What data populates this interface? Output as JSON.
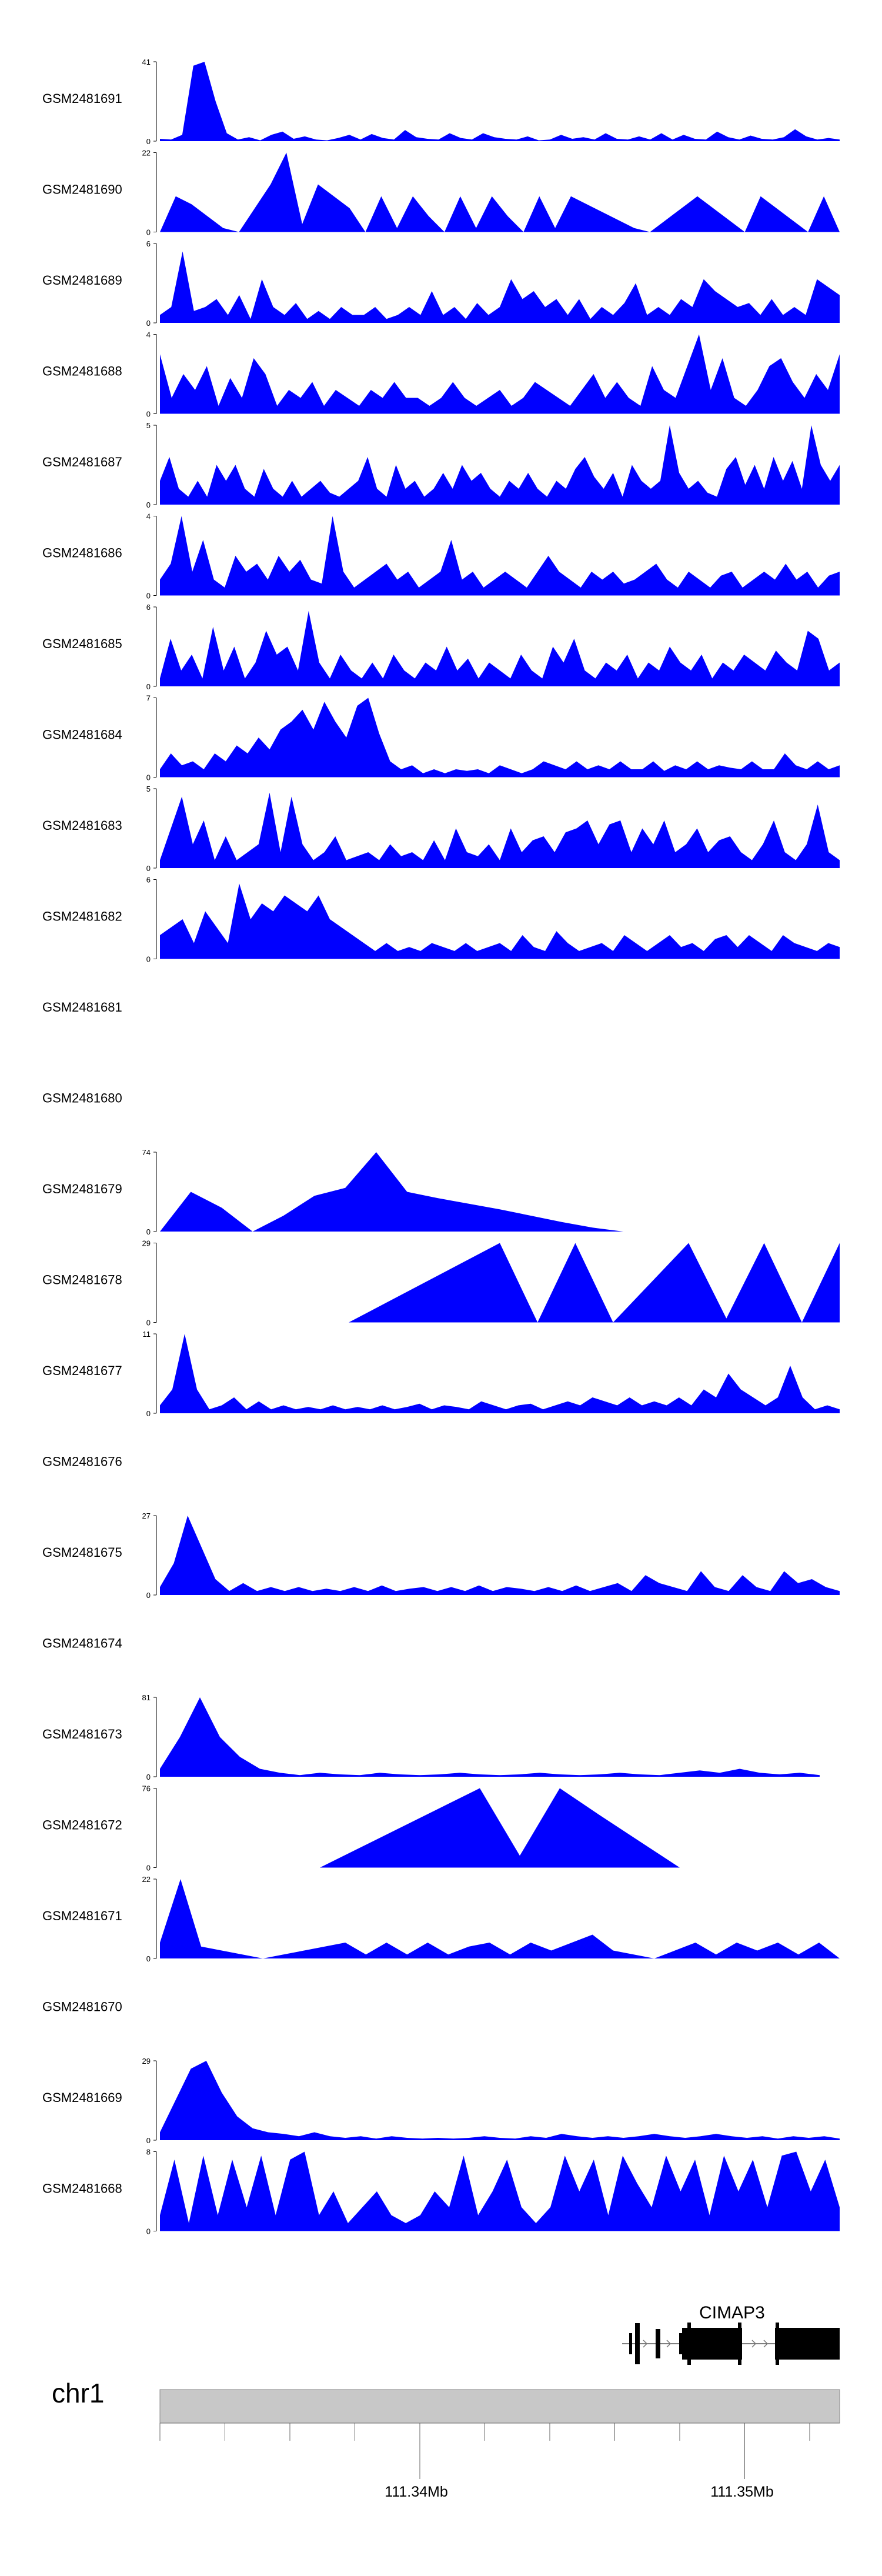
{
  "colors": {
    "signal": "#0000ff",
    "axis": "#000000",
    "ideogram": "#c8c8c8",
    "gene": "#000000"
  },
  "chart_data": {
    "type": "area",
    "x_axis": {
      "ticks": [
        "111.34Mb",
        "111.35Mb"
      ],
      "grid": false
    },
    "chromosome": "chr1",
    "gene": {
      "label": "CIMAP3"
    },
    "tracks": [
      {
        "name": "GSM2481691",
        "ymax": 41,
        "y0": 0,
        "profile": [
          0.03,
          0.02,
          0.08,
          0.95,
          1.0,
          0.5,
          0.1,
          0.02,
          0.05,
          0.01,
          0.08,
          0.12,
          0.03,
          0.06,
          0.02,
          0.01,
          0.04,
          0.08,
          0.02,
          0.09,
          0.04,
          0.02,
          0.14,
          0.05,
          0.03,
          0.02,
          0.1,
          0.04,
          0.02,
          0.1,
          0.05,
          0.03,
          0.02,
          0.06,
          0.01,
          0.02,
          0.08,
          0.03,
          0.05,
          0.02,
          0.1,
          0.03,
          0.02,
          0.06,
          0.02,
          0.1,
          0.02,
          0.08,
          0.03,
          0.02,
          0.12,
          0.05,
          0.02,
          0.07,
          0.03,
          0.02,
          0.05,
          0.15,
          0.06,
          0.02,
          0.04,
          0.02
        ]
      },
      {
        "name": "GSM2481690",
        "ymax": 22,
        "y0": 0,
        "profile": [
          0,
          0.45,
          0.35,
          0.2,
          0.05,
          0.0,
          0.3,
          0.6,
          1.0,
          0.1,
          0.6,
          0.45,
          0.3,
          0.0,
          0.45,
          0.05,
          0.45,
          0.2,
          0.0,
          0.45,
          0.05,
          0.45,
          0.2,
          0.0,
          0.45,
          0.05,
          0.45,
          0.35,
          0.25,
          0.15,
          0.05,
          0.0,
          0.15,
          0.3,
          0.45,
          0.3,
          0.15,
          0.0,
          0.45,
          0.3,
          0.15,
          0.0,
          0.45,
          0.0
        ]
      },
      {
        "name": "GSM2481689",
        "ymax": 6,
        "y0": 0,
        "profile": [
          0.1,
          0.2,
          0.9,
          0.15,
          0.2,
          0.3,
          0.1,
          0.35,
          0.05,
          0.55,
          0.2,
          0.1,
          0.25,
          0.05,
          0.15,
          0.05,
          0.2,
          0.1,
          0.1,
          0.2,
          0.05,
          0.1,
          0.2,
          0.1,
          0.4,
          0.1,
          0.2,
          0.05,
          0.25,
          0.1,
          0.2,
          0.55,
          0.3,
          0.4,
          0.2,
          0.3,
          0.1,
          0.3,
          0.05,
          0.2,
          0.1,
          0.25,
          0.5,
          0.1,
          0.2,
          0.1,
          0.3,
          0.2,
          0.55,
          0.4,
          0.3,
          0.2,
          0.25,
          0.1,
          0.3,
          0.1,
          0.2,
          0.1,
          0.55,
          0.45,
          0.35
        ]
      },
      {
        "name": "GSM2481688",
        "ymax": 4,
        "y0": 0,
        "profile": [
          0.75,
          0.2,
          0.5,
          0.3,
          0.6,
          0.1,
          0.45,
          0.2,
          0.7,
          0.5,
          0.1,
          0.3,
          0.2,
          0.4,
          0.1,
          0.3,
          0.2,
          0.1,
          0.3,
          0.2,
          0.4,
          0.2,
          0.2,
          0.1,
          0.2,
          0.4,
          0.2,
          0.1,
          0.2,
          0.3,
          0.1,
          0.2,
          0.4,
          0.3,
          0.2,
          0.1,
          0.3,
          0.5,
          0.2,
          0.4,
          0.2,
          0.1,
          0.6,
          0.3,
          0.2,
          0.6,
          1.0,
          0.3,
          0.7,
          0.2,
          0.1,
          0.3,
          0.6,
          0.7,
          0.4,
          0.2,
          0.5,
          0.3,
          0.75
        ]
      },
      {
        "name": "GSM2481687",
        "ymax": 5,
        "y0": 0,
        "profile": [
          0.3,
          0.6,
          0.2,
          0.1,
          0.3,
          0.1,
          0.5,
          0.3,
          0.5,
          0.2,
          0.1,
          0.45,
          0.2,
          0.1,
          0.3,
          0.1,
          0.2,
          0.3,
          0.15,
          0.1,
          0.2,
          0.3,
          0.6,
          0.2,
          0.1,
          0.5,
          0.2,
          0.3,
          0.1,
          0.2,
          0.4,
          0.2,
          0.5,
          0.3,
          0.4,
          0.2,
          0.1,
          0.3,
          0.2,
          0.4,
          0.2,
          0.1,
          0.3,
          0.2,
          0.45,
          0.6,
          0.35,
          0.2,
          0.4,
          0.1,
          0.5,
          0.3,
          0.2,
          0.3,
          1.0,
          0.4,
          0.2,
          0.3,
          0.15,
          0.1,
          0.45,
          0.6,
          0.25,
          0.5,
          0.2,
          0.6,
          0.3,
          0.55,
          0.2,
          1.0,
          0.5,
          0.3,
          0.5
        ]
      },
      {
        "name": "GSM2481686",
        "ymax": 4,
        "y0": 0,
        "profile": [
          0.2,
          0.4,
          1.0,
          0.3,
          0.7,
          0.2,
          0.1,
          0.5,
          0.3,
          0.4,
          0.2,
          0.5,
          0.3,
          0.45,
          0.2,
          0.15,
          1.0,
          0.3,
          0.1,
          0.2,
          0.3,
          0.4,
          0.2,
          0.3,
          0.1,
          0.2,
          0.3,
          0.7,
          0.2,
          0.3,
          0.1,
          0.2,
          0.3,
          0.2,
          0.1,
          0.3,
          0.5,
          0.3,
          0.2,
          0.1,
          0.3,
          0.2,
          0.3,
          0.15,
          0.2,
          0.3,
          0.4,
          0.2,
          0.1,
          0.3,
          0.2,
          0.1,
          0.25,
          0.3,
          0.1,
          0.2,
          0.3,
          0.2,
          0.4,
          0.2,
          0.3,
          0.1,
          0.25,
          0.3
        ]
      },
      {
        "name": "GSM2481685",
        "ymax": 6,
        "y0": 0,
        "profile": [
          0.1,
          0.6,
          0.2,
          0.4,
          0.1,
          0.75,
          0.2,
          0.5,
          0.1,
          0.3,
          0.7,
          0.4,
          0.5,
          0.2,
          0.95,
          0.3,
          0.1,
          0.4,
          0.2,
          0.1,
          0.3,
          0.1,
          0.4,
          0.2,
          0.1,
          0.3,
          0.2,
          0.5,
          0.2,
          0.35,
          0.1,
          0.3,
          0.2,
          0.1,
          0.4,
          0.2,
          0.1,
          0.5,
          0.3,
          0.6,
          0.2,
          0.1,
          0.3,
          0.2,
          0.4,
          0.1,
          0.3,
          0.2,
          0.5,
          0.3,
          0.2,
          0.4,
          0.1,
          0.3,
          0.2,
          0.4,
          0.3,
          0.2,
          0.45,
          0.3,
          0.2,
          0.7,
          0.6,
          0.2,
          0.3
        ]
      },
      {
        "name": "GSM2481684",
        "ymax": 7,
        "y0": 0,
        "profile": [
          0.1,
          0.3,
          0.15,
          0.2,
          0.1,
          0.3,
          0.2,
          0.4,
          0.3,
          0.5,
          0.35,
          0.6,
          0.7,
          0.85,
          0.6,
          0.95,
          0.7,
          0.5,
          0.9,
          1.0,
          0.55,
          0.2,
          0.1,
          0.15,
          0.05,
          0.1,
          0.05,
          0.1,
          0.08,
          0.1,
          0.05,
          0.15,
          0.1,
          0.05,
          0.1,
          0.2,
          0.15,
          0.1,
          0.2,
          0.1,
          0.15,
          0.1,
          0.2,
          0.1,
          0.1,
          0.2,
          0.08,
          0.15,
          0.1,
          0.2,
          0.1,
          0.15,
          0.12,
          0.1,
          0.2,
          0.1,
          0.1,
          0.3,
          0.15,
          0.1,
          0.2,
          0.1,
          0.15
        ]
      },
      {
        "name": "GSM2481683",
        "ymax": 5,
        "y0": 0,
        "profile": [
          0.1,
          0.5,
          0.9,
          0.3,
          0.6,
          0.1,
          0.4,
          0.1,
          0.2,
          0.3,
          0.95,
          0.2,
          0.9,
          0.3,
          0.1,
          0.2,
          0.4,
          0.1,
          0.15,
          0.2,
          0.1,
          0.3,
          0.15,
          0.2,
          0.1,
          0.35,
          0.1,
          0.5,
          0.2,
          0.15,
          0.3,
          0.1,
          0.5,
          0.2,
          0.35,
          0.4,
          0.2,
          0.45,
          0.5,
          0.6,
          0.3,
          0.55,
          0.6,
          0.2,
          0.5,
          0.3,
          0.6,
          0.2,
          0.3,
          0.5,
          0.2,
          0.35,
          0.4,
          0.2,
          0.1,
          0.3,
          0.6,
          0.2,
          0.1,
          0.3,
          0.8,
          0.2,
          0.1
        ]
      },
      {
        "name": "GSM2481682",
        "ymax": 6,
        "y0": 0,
        "profile": [
          0.3,
          0.4,
          0.5,
          0.2,
          0.6,
          0.4,
          0.2,
          0.95,
          0.5,
          0.7,
          0.6,
          0.8,
          0.7,
          0.6,
          0.8,
          0.5,
          0.4,
          0.3,
          0.2,
          0.1,
          0.2,
          0.1,
          0.15,
          0.1,
          0.2,
          0.15,
          0.1,
          0.2,
          0.1,
          0.15,
          0.2,
          0.1,
          0.3,
          0.15,
          0.1,
          0.35,
          0.2,
          0.1,
          0.15,
          0.2,
          0.1,
          0.3,
          0.2,
          0.1,
          0.2,
          0.3,
          0.15,
          0.2,
          0.1,
          0.25,
          0.3,
          0.15,
          0.3,
          0.2,
          0.1,
          0.3,
          0.2,
          0.15,
          0.1,
          0.2,
          0.15
        ]
      },
      {
        "name": "GSM2481681",
        "ymax": null,
        "y0": null,
        "profile": []
      },
      {
        "name": "GSM2481680",
        "ymax": null,
        "y0": null,
        "profile": []
      },
      {
        "name": "GSM2481679",
        "ymax": 74,
        "y0": 0,
        "profile": [
          0.0,
          0.5,
          0.3,
          0.0,
          0.2,
          0.45,
          0.55,
          1.0,
          0.5,
          0.42,
          0.35,
          0.28,
          0.2,
          0.12,
          0.05,
          0.0,
          null,
          null,
          null,
          null,
          null,
          null,
          null
        ]
      },
      {
        "name": "GSM2481678",
        "ymax": 29,
        "y0": 0,
        "profile": [
          null,
          null,
          null,
          null,
          null,
          0.0,
          0.25,
          0.5,
          0.75,
          1.0,
          0.0,
          1.0,
          0.0,
          0.5,
          1.0,
          0.05,
          1.0,
          0.0,
          1.0
        ]
      },
      {
        "name": "GSM2481677",
        "ymax": 11,
        "y0": 0,
        "profile": [
          0.1,
          0.3,
          1.0,
          0.3,
          0.05,
          0.1,
          0.2,
          0.05,
          0.15,
          0.05,
          0.1,
          0.05,
          0.08,
          0.05,
          0.1,
          0.05,
          0.08,
          0.05,
          0.1,
          0.05,
          0.08,
          0.12,
          0.05,
          0.1,
          0.08,
          0.05,
          0.15,
          0.1,
          0.05,
          0.1,
          0.12,
          0.05,
          0.1,
          0.15,
          0.1,
          0.2,
          0.15,
          0.1,
          0.2,
          0.1,
          0.15,
          0.1,
          0.2,
          0.1,
          0.3,
          0.2,
          0.5,
          0.3,
          0.2,
          0.1,
          0.2,
          0.6,
          0.2,
          0.05,
          0.1,
          0.05
        ]
      },
      {
        "name": "GSM2481676",
        "ymax": null,
        "y0": null,
        "profile": []
      },
      {
        "name": "GSM2481675",
        "ymax": 27,
        "y0": 0,
        "profile": [
          0.1,
          0.4,
          1.0,
          0.6,
          0.2,
          0.05,
          0.15,
          0.05,
          0.1,
          0.05,
          0.1,
          0.05,
          0.08,
          0.05,
          0.1,
          0.05,
          0.12,
          0.05,
          0.08,
          0.1,
          0.05,
          0.1,
          0.05,
          0.12,
          0.05,
          0.1,
          0.08,
          0.05,
          0.1,
          0.05,
          0.12,
          0.05,
          0.1,
          0.15,
          0.05,
          0.25,
          0.15,
          0.1,
          0.05,
          0.3,
          0.1,
          0.05,
          0.25,
          0.1,
          0.05,
          0.3,
          0.15,
          0.2,
          0.1,
          0.05
        ]
      },
      {
        "name": "GSM2481674",
        "ymax": null,
        "y0": null,
        "profile": []
      },
      {
        "name": "GSM2481673",
        "ymax": 81,
        "y0": 0,
        "profile": [
          0.1,
          0.5,
          1.0,
          0.5,
          0.25,
          0.1,
          0.05,
          0.02,
          0.05,
          0.03,
          0.02,
          0.05,
          0.03,
          0.02,
          0.03,
          0.05,
          0.03,
          0.02,
          0.03,
          0.05,
          0.03,
          0.02,
          0.03,
          0.05,
          0.03,
          0.02,
          0.05,
          0.08,
          0.05,
          0.1,
          0.05,
          0.03,
          0.05,
          0.02,
          null
        ]
      },
      {
        "name": "GSM2481672",
        "ymax": 76,
        "y0": 0,
        "profile": [
          null,
          null,
          null,
          null,
          0.0,
          0.25,
          0.5,
          0.75,
          1.0,
          0.15,
          1.0,
          0.66,
          0.33,
          0.0,
          null,
          null,
          null,
          null
        ]
      },
      {
        "name": "GSM2481671",
        "ymax": 22,
        "y0": 0,
        "profile": [
          0.2,
          1.0,
          0.15,
          0.1,
          0.05,
          0.0,
          0.05,
          0.1,
          0.15,
          0.2,
          0.05,
          0.2,
          0.05,
          0.2,
          0.05,
          0.15,
          0.2,
          0.05,
          0.2,
          0.1,
          0.2,
          0.3,
          0.1,
          0.05,
          0.0,
          0.1,
          0.2,
          0.05,
          0.2,
          0.1,
          0.2,
          0.05,
          0.2,
          0.0
        ]
      },
      {
        "name": "GSM2481670",
        "ymax": null,
        "y0": null,
        "profile": []
      },
      {
        "name": "GSM2481669",
        "ymax": 29,
        "y0": 0,
        "profile": [
          0.1,
          0.5,
          0.9,
          1.0,
          0.6,
          0.3,
          0.15,
          0.1,
          0.08,
          0.05,
          0.1,
          0.05,
          0.03,
          0.05,
          0.02,
          0.05,
          0.03,
          0.02,
          0.03,
          0.02,
          0.03,
          0.05,
          0.03,
          0.02,
          0.05,
          0.03,
          0.08,
          0.05,
          0.03,
          0.05,
          0.03,
          0.05,
          0.08,
          0.05,
          0.03,
          0.05,
          0.08,
          0.05,
          0.03,
          0.05,
          0.02,
          0.05,
          0.03,
          0.05,
          0.02
        ]
      },
      {
        "name": "GSM2481668",
        "ymax": 8,
        "y0": 0,
        "profile": [
          0.2,
          0.9,
          0.1,
          0.95,
          0.2,
          0.9,
          0.3,
          0.95,
          0.2,
          0.9,
          1.0,
          0.2,
          0.5,
          0.1,
          0.3,
          0.5,
          0.2,
          0.1,
          0.2,
          0.5,
          0.3,
          0.95,
          0.2,
          0.5,
          0.9,
          0.3,
          0.1,
          0.3,
          0.95,
          0.5,
          0.9,
          0.2,
          0.95,
          0.6,
          0.3,
          0.95,
          0.5,
          0.9,
          0.2,
          0.95,
          0.5,
          0.9,
          0.3,
          0.95,
          1.0,
          0.5,
          0.9,
          0.3
        ]
      }
    ]
  }
}
